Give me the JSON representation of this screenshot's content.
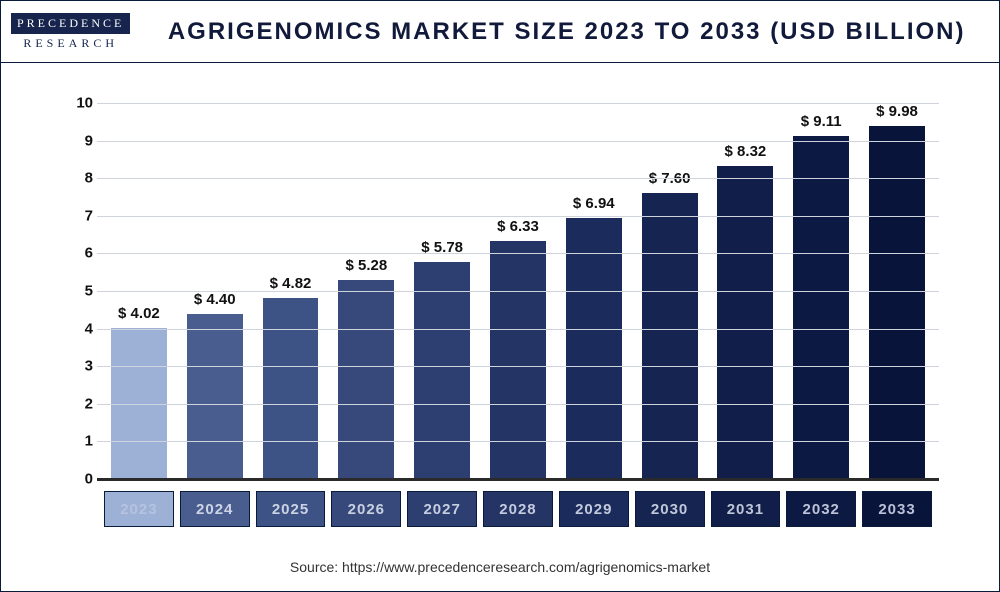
{
  "logo": {
    "top": "PRECEDENCE",
    "bottom": "RESEARCH"
  },
  "title": "AGRIGENOMICS MARKET SIZE 2023 TO 2033 (USD BILLION)",
  "source": "Source: https://www.precedenceresearch.com/agrigenomics-market",
  "chart": {
    "type": "bar",
    "ylim": [
      0,
      10
    ],
    "ytick_step": 1,
    "grid_color": "#cfd3dc",
    "baseline_color": "#2a2a2a",
    "background_color": "#ffffff",
    "label_prefix": "$ ",
    "categories": [
      "2023",
      "2024",
      "2025",
      "2026",
      "2027",
      "2028",
      "2029",
      "2030",
      "2031",
      "2032",
      "2033"
    ],
    "values": [
      4.02,
      4.4,
      4.82,
      5.28,
      5.78,
      6.33,
      6.94,
      7.6,
      8.32,
      9.11,
      9.98
    ],
    "bar_colors": [
      "#9db0d6",
      "#495d8f",
      "#3e5385",
      "#36497a",
      "#2d3e70",
      "#243465",
      "#1b2b5b",
      "#152451",
      "#101e49",
      "#0c1942",
      "#09143b"
    ],
    "xlabel_text_colors": [
      "#b6c3e0",
      "#cdd4e5",
      "#ccd2e2",
      "#c9d0e1",
      "#c7cee0",
      "#c5cbde",
      "#c2c9dc",
      "#c0c7db",
      "#bec5d9",
      "#bcc3d8",
      "#bac1d6"
    ],
    "xlabel_bg_colors": [
      "#9db0d6",
      "#495d8f",
      "#3e5385",
      "#36497a",
      "#2d3e70",
      "#243465",
      "#1b2b5b",
      "#152451",
      "#101e49",
      "#0c1942",
      "#09143b"
    ],
    "title_fontsize": 24,
    "label_fontsize": 15,
    "bar_width_pct": 80
  }
}
